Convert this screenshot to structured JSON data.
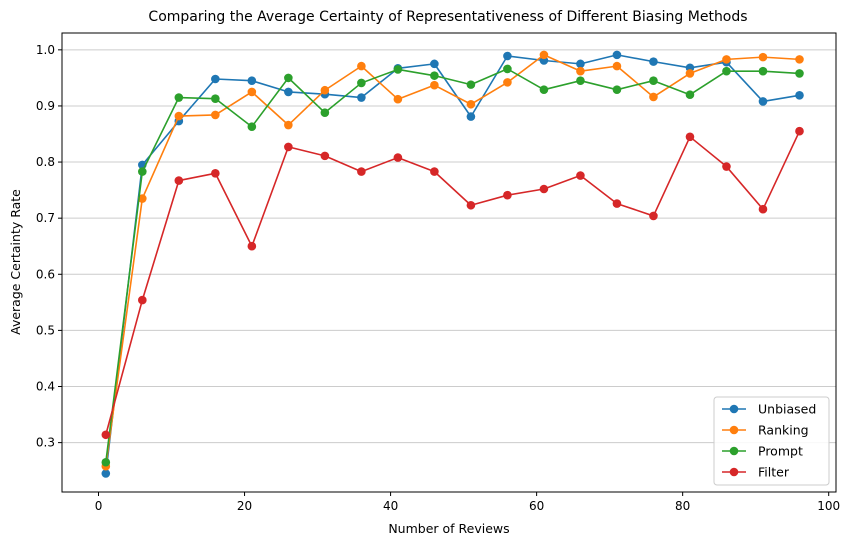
{
  "chart_data": {
    "type": "line",
    "title": "Comparing the Average Certainty of Representativeness of Different Biasing Methods",
    "xlabel": "Number of Reviews",
    "ylabel": "Average Certainty Rate",
    "xlim": [
      -5,
      101
    ],
    "ylim": [
      0.212,
      1.03
    ],
    "xticks": [
      0,
      20,
      40,
      60,
      80,
      100
    ],
    "yticks": [
      0.3,
      0.4,
      0.5,
      0.6,
      0.7,
      0.8,
      0.9,
      1.0
    ],
    "xtick_labels": [
      "0",
      "20",
      "40",
      "60",
      "80",
      "100"
    ],
    "ytick_labels": [
      "0.3",
      "0.4",
      "0.5",
      "0.6",
      "0.7",
      "0.8",
      "0.9",
      "1.0"
    ],
    "grid": "horizontal",
    "legend_position": "lower-right",
    "x": [
      1,
      6,
      11,
      16,
      21,
      26,
      31,
      36,
      41,
      46,
      51,
      56,
      61,
      66,
      71,
      76,
      81,
      86,
      91,
      96
    ],
    "series": [
      {
        "name": "Unbiased",
        "color": "#1f77b4",
        "values": [
          0.245,
          0.795,
          0.873,
          0.948,
          0.945,
          0.925,
          0.921,
          0.915,
          0.967,
          0.975,
          0.881,
          0.989,
          0.981,
          0.975,
          0.991,
          0.979,
          0.968,
          0.978,
          0.908,
          0.919
        ]
      },
      {
        "name": "Ranking",
        "color": "#ff7f0e",
        "values": [
          0.258,
          0.735,
          0.882,
          0.884,
          0.925,
          0.866,
          0.928,
          0.971,
          0.912,
          0.937,
          0.903,
          0.942,
          0.991,
          0.962,
          0.971,
          0.916,
          0.958,
          0.983,
          0.987,
          0.983
        ]
      },
      {
        "name": "Prompt",
        "color": "#2ca02c",
        "values": [
          0.265,
          0.783,
          0.915,
          0.913,
          0.863,
          0.95,
          0.888,
          0.941,
          0.965,
          0.954,
          0.938,
          0.966,
          0.929,
          0.945,
          0.929,
          0.945,
          0.92,
          0.962,
          0.962,
          0.958
        ]
      },
      {
        "name": "Filter",
        "color": "#d62728",
        "values": [
          0.314,
          0.554,
          0.767,
          0.78,
          0.65,
          0.827,
          0.811,
          0.783,
          0.808,
          0.783,
          0.723,
          0.741,
          0.752,
          0.776,
          0.726,
          0.704,
          0.845,
          0.792,
          0.716,
          0.855
        ]
      }
    ]
  }
}
